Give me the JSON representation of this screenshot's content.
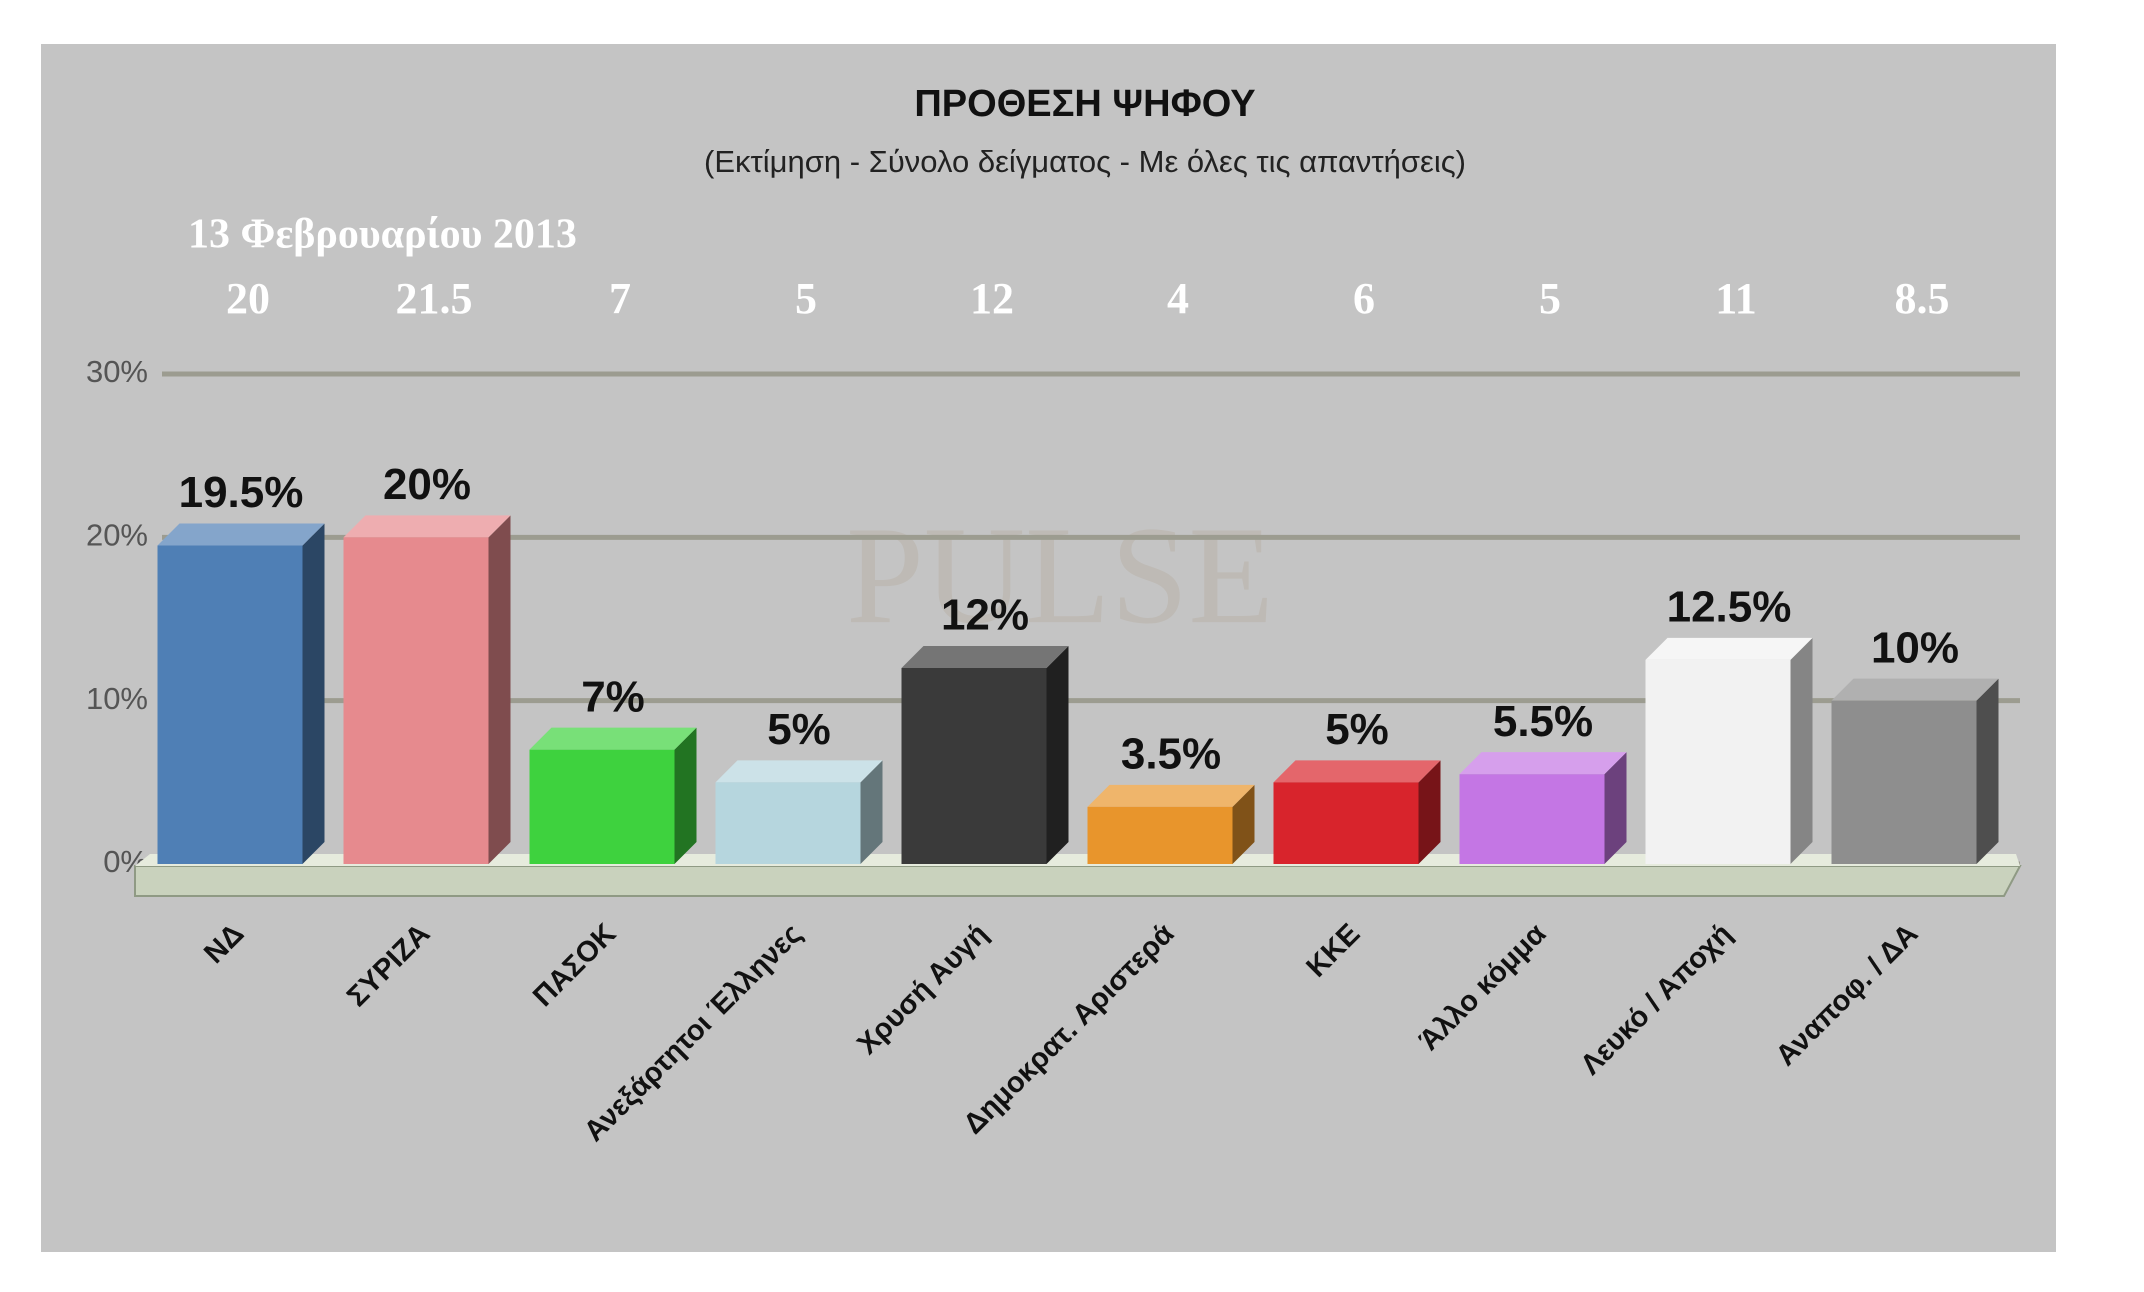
{
  "chart_data": {
    "type": "bar3d",
    "title": "ΠΡΟΘΕΣΗ ΨΗΦΟΥ",
    "subtitle": "(Εκτίμηση - Σύνολο δείγματος - Με όλες τις απαντήσεις)",
    "watermark": "PULSE",
    "comparison": {
      "label": "13 Φεβρουαρίου 2013",
      "values": [
        20,
        21.5,
        7,
        5,
        12,
        4,
        6,
        5,
        11,
        8.5
      ]
    },
    "categories": [
      "ΝΔ",
      "ΣΥΡΙΖΑ",
      "ΠΑΣΟΚ",
      "Ανεξάρτητοι Έλληνες",
      "Χρυσή Αυγή",
      "Δημοκρατ. Αριστερά",
      "ΚΚΕ",
      "Άλλο κόμμα",
      "Λευκό / Αποχή",
      "Αναποφ. / ΔΑ"
    ],
    "values": [
      19.5,
      20,
      7,
      5,
      12,
      3.5,
      5,
      5.5,
      12.5,
      10
    ],
    "value_labels": [
      "19.5%",
      "20%",
      "7%",
      "5%",
      "12%",
      "3.5%",
      "5%",
      "5.5%",
      "12.5%",
      "10%"
    ],
    "colors": [
      "#4f7fb5",
      "#e68a8e",
      "#3ed23e",
      "#b6d6de",
      "#3a3a3a",
      "#e8952c",
      "#d8242c",
      "#c476e4",
      "#f2f2f2",
      "#8e8e8e"
    ],
    "ylim": [
      0,
      30
    ],
    "yticks": [
      {
        "value": 0,
        "label": "0%"
      },
      {
        "value": 10,
        "label": "10%"
      },
      {
        "value": 20,
        "label": "20%"
      },
      {
        "value": 30,
        "label": "30%"
      }
    ],
    "grid": true
  }
}
